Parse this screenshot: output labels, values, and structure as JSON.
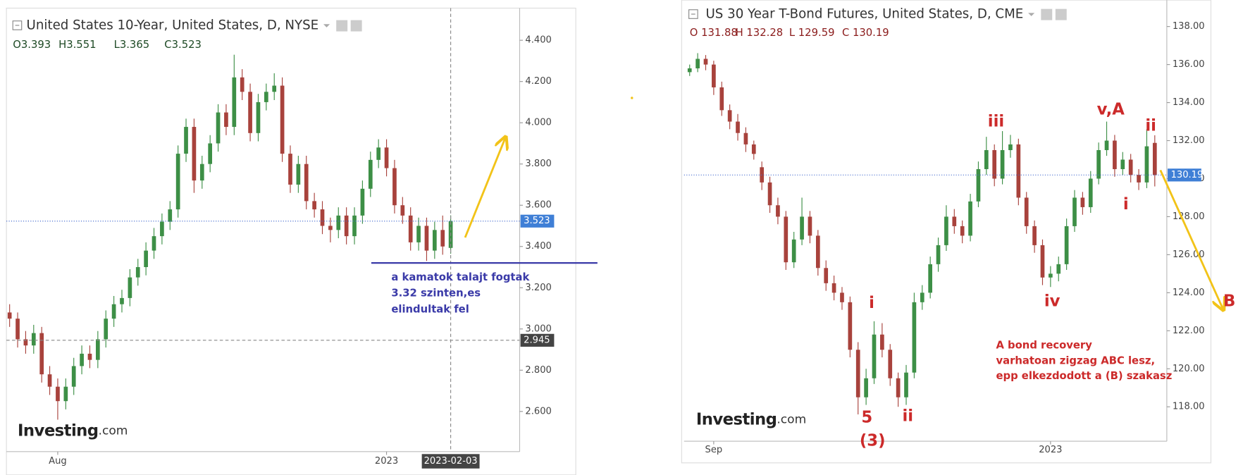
{
  "chart_data": [
    {
      "type": "candlestick",
      "title": "United States 10-Year, United States, D, NYSE",
      "info": [
        "O3.393",
        "H3.551",
        "L3.365",
        "C3.523"
      ],
      "up_color": "#3d8f46",
      "down_color": "#a8423c",
      "categories": [
        null,
        null,
        null,
        null,
        null,
        null,
        "Aug",
        null,
        null,
        null,
        null,
        null,
        null,
        null,
        null,
        null,
        null,
        null,
        null,
        null,
        null,
        null,
        null,
        null,
        null,
        null,
        null,
        null,
        null,
        null,
        null,
        null,
        null,
        null,
        null,
        null,
        null,
        null,
        null,
        null,
        null,
        null,
        null,
        null,
        null,
        null,
        null,
        "2023",
        null,
        null,
        null,
        null,
        null,
        null,
        null,
        null
      ],
      "ohlc": [
        [
          3.08,
          3.12,
          3.01,
          3.05
        ],
        [
          3.05,
          3.08,
          2.91,
          2.95
        ],
        [
          2.95,
          2.99,
          2.88,
          2.92
        ],
        [
          2.92,
          3.02,
          2.88,
          2.98
        ],
        [
          2.98,
          3.01,
          2.74,
          2.78
        ],
        [
          2.78,
          2.82,
          2.68,
          2.72
        ],
        [
          2.72,
          2.76,
          2.56,
          2.65
        ],
        [
          2.65,
          2.76,
          2.61,
          2.72
        ],
        [
          2.72,
          2.86,
          2.68,
          2.82
        ],
        [
          2.82,
          2.92,
          2.78,
          2.88
        ],
        [
          2.88,
          2.92,
          2.81,
          2.85
        ],
        [
          2.85,
          2.99,
          2.81,
          2.95
        ],
        [
          2.95,
          3.09,
          2.91,
          3.05
        ],
        [
          3.05,
          3.16,
          3.01,
          3.12
        ],
        [
          3.12,
          3.19,
          3.08,
          3.15
        ],
        [
          3.15,
          3.29,
          3.11,
          3.25
        ],
        [
          3.25,
          3.34,
          3.21,
          3.3
        ],
        [
          3.3,
          3.42,
          3.26,
          3.38
        ],
        [
          3.38,
          3.49,
          3.34,
          3.45
        ],
        [
          3.45,
          3.56,
          3.41,
          3.52
        ],
        [
          3.52,
          3.62,
          3.48,
          3.58
        ],
        [
          3.58,
          3.89,
          3.54,
          3.85
        ],
        [
          3.85,
          4.02,
          3.81,
          3.98
        ],
        [
          3.98,
          4.02,
          3.66,
          3.72
        ],
        [
          3.72,
          3.84,
          3.68,
          3.8
        ],
        [
          3.8,
          3.94,
          3.76,
          3.9
        ],
        [
          3.9,
          4.09,
          3.86,
          4.05
        ],
        [
          4.05,
          4.09,
          3.94,
          3.98
        ],
        [
          3.98,
          4.33,
          3.94,
          4.22
        ],
        [
          4.22,
          4.26,
          4.11,
          4.15
        ],
        [
          4.15,
          4.19,
          3.91,
          3.95
        ],
        [
          3.95,
          4.14,
          3.91,
          4.1
        ],
        [
          4.1,
          4.19,
          4.06,
          4.15
        ],
        [
          4.15,
          4.24,
          4.11,
          4.18
        ],
        [
          4.18,
          4.22,
          3.81,
          3.85
        ],
        [
          3.85,
          3.89,
          3.66,
          3.7
        ],
        [
          3.7,
          3.84,
          3.66,
          3.8
        ],
        [
          3.8,
          3.84,
          3.58,
          3.62
        ],
        [
          3.62,
          3.66,
          3.54,
          3.58
        ],
        [
          3.58,
          3.62,
          3.46,
          3.5
        ],
        [
          3.5,
          3.54,
          3.42,
          3.48
        ],
        [
          3.48,
          3.59,
          3.44,
          3.55
        ],
        [
          3.55,
          3.59,
          3.41,
          3.45
        ],
        [
          3.45,
          3.59,
          3.41,
          3.55
        ],
        [
          3.55,
          3.72,
          3.51,
          3.68
        ],
        [
          3.68,
          3.86,
          3.64,
          3.82
        ],
        [
          3.82,
          3.92,
          3.78,
          3.88
        ],
        [
          3.88,
          3.92,
          3.74,
          3.78
        ],
        [
          3.78,
          3.82,
          3.56,
          3.6
        ],
        [
          3.6,
          3.64,
          3.51,
          3.55
        ],
        [
          3.55,
          3.59,
          3.38,
          3.42
        ],
        [
          3.42,
          3.54,
          3.38,
          3.5
        ],
        [
          3.5,
          3.54,
          3.33,
          3.38
        ],
        [
          3.38,
          3.52,
          3.34,
          3.48
        ],
        [
          3.48,
          3.55,
          3.36,
          3.4
        ],
        [
          3.393,
          3.551,
          3.365,
          3.523
        ]
      ],
      "ylim": [
        2.405,
        4.556
      ],
      "yticks": [
        {
          "value": 2.6,
          "label": "2.600"
        },
        {
          "value": 2.8,
          "label": "2.800"
        },
        {
          "value": 3.0,
          "label": "3.000"
        },
        {
          "value": 3.2,
          "label": "3.200"
        },
        {
          "value": 3.4,
          "label": "3.400"
        },
        {
          "value": 3.6,
          "label": "3.600"
        },
        {
          "value": 3.8,
          "label": "3.800"
        },
        {
          "value": 4.0,
          "label": "4.000"
        },
        {
          "value": 4.2,
          "label": "4.200"
        },
        {
          "value": 4.4,
          "label": "4.400"
        }
      ],
      "last_price": 3.523,
      "crosshair_y": 2.945,
      "crosshair_x_label": "2023-02-03",
      "support_line": 3.32,
      "annotation": [
        "a kamatok talajt fogtak",
        "3.32 szinten,es",
        "elindultak fel"
      ],
      "annotation_color": "#3a3aa8",
      "watermark": [
        "Investing",
        ".com"
      ]
    },
    {
      "type": "candlestick",
      "title": "US 30 Year T-Bond Futures, United States, D, CME",
      "info": [
        "O 131.88",
        "H 132.28",
        "L 129.59",
        "C 130.19"
      ],
      "up_color": "#3d8f46",
      "down_color": "#a8423c",
      "categories": [
        null,
        null,
        null,
        "Sep",
        null,
        null,
        null,
        null,
        null,
        null,
        null,
        null,
        null,
        null,
        null,
        null,
        null,
        null,
        null,
        null,
        null,
        null,
        null,
        null,
        null,
        null,
        null,
        null,
        null,
        null,
        null,
        null,
        null,
        null,
        null,
        null,
        null,
        null,
        null,
        null,
        null,
        null,
        null,
        null,
        null,
        "2023",
        null,
        null,
        null,
        null,
        null,
        null,
        null,
        null,
        null,
        null,
        null,
        null,
        null
      ],
      "ohlc": [
        [
          135.6,
          136.0,
          135.4,
          135.8
        ],
        [
          135.8,
          136.6,
          135.6,
          136.3
        ],
        [
          136.3,
          136.5,
          135.7,
          136.0
        ],
        [
          136.0,
          136.2,
          134.4,
          134.8
        ],
        [
          134.8,
          135.1,
          133.3,
          133.6
        ],
        [
          133.6,
          133.9,
          132.6,
          133.0
        ],
        [
          133.0,
          133.4,
          132.0,
          132.4
        ],
        [
          132.4,
          132.7,
          131.4,
          131.8
        ],
        [
          131.8,
          132.0,
          131.0,
          131.3
        ],
        [
          130.6,
          130.9,
          129.4,
          129.8
        ],
        [
          129.8,
          130.1,
          128.2,
          128.6
        ],
        [
          128.6,
          129.0,
          127.6,
          128.0
        ],
        [
          128.0,
          128.3,
          125.2,
          125.6
        ],
        [
          125.6,
          127.2,
          125.3,
          126.8
        ],
        [
          126.8,
          129.0,
          126.5,
          128.0
        ],
        [
          128.0,
          128.3,
          126.6,
          127.0
        ],
        [
          127.0,
          127.3,
          124.9,
          125.3
        ],
        [
          125.3,
          125.7,
          124.1,
          124.5
        ],
        [
          124.5,
          124.9,
          123.6,
          124.0
        ],
        [
          124.0,
          124.3,
          123.1,
          123.5
        ],
        [
          123.5,
          123.8,
          120.6,
          121.0
        ],
        [
          121.0,
          121.4,
          117.6,
          118.5
        ],
        [
          118.5,
          120.0,
          118.1,
          119.5
        ],
        [
          119.5,
          122.5,
          119.2,
          121.8
        ],
        [
          121.8,
          122.4,
          120.6,
          121.0
        ],
        [
          121.0,
          121.3,
          119.1,
          119.5
        ],
        [
          119.5,
          119.8,
          118.0,
          118.5
        ],
        [
          118.5,
          120.2,
          118.1,
          119.8
        ],
        [
          119.8,
          124.0,
          119.5,
          123.5
        ],
        [
          123.5,
          124.4,
          123.1,
          124.0
        ],
        [
          124.0,
          125.9,
          123.7,
          125.5
        ],
        [
          125.5,
          126.9,
          125.1,
          126.5
        ],
        [
          126.5,
          128.6,
          126.2,
          128.0
        ],
        [
          128.0,
          128.4,
          127.1,
          127.5
        ],
        [
          127.5,
          127.8,
          126.6,
          127.0
        ],
        [
          127.0,
          129.2,
          126.7,
          128.8
        ],
        [
          128.8,
          130.9,
          128.5,
          130.5
        ],
        [
          130.5,
          132.2,
          130.2,
          131.5
        ],
        [
          131.5,
          131.8,
          129.6,
          130.0
        ],
        [
          130.0,
          132.5,
          129.7,
          131.5
        ],
        [
          131.5,
          132.3,
          131.1,
          131.8
        ],
        [
          131.8,
          132.1,
          128.6,
          129.0
        ],
        [
          129.0,
          129.3,
          127.1,
          127.5
        ],
        [
          127.5,
          127.8,
          126.1,
          126.5
        ],
        [
          126.5,
          126.8,
          124.4,
          124.8
        ],
        [
          124.8,
          125.4,
          124.3,
          125.0
        ],
        [
          125.0,
          125.9,
          124.6,
          125.5
        ],
        [
          125.5,
          127.9,
          125.2,
          127.5
        ],
        [
          127.5,
          129.4,
          127.2,
          129.0
        ],
        [
          129.0,
          129.3,
          128.1,
          128.5
        ],
        [
          128.5,
          130.4,
          128.2,
          130.0
        ],
        [
          130.0,
          131.9,
          129.7,
          131.5
        ],
        [
          131.5,
          133.0,
          131.2,
          132.0
        ],
        [
          132.0,
          132.3,
          130.1,
          130.5
        ],
        [
          130.5,
          131.4,
          130.2,
          131.0
        ],
        [
          131.0,
          131.3,
          129.8,
          130.2
        ],
        [
          130.2,
          130.5,
          129.4,
          129.8
        ],
        [
          129.8,
          132.6,
          129.5,
          131.7
        ],
        [
          131.88,
          132.28,
          129.59,
          130.19
        ]
      ],
      "ylim": [
        116.19,
        139.39
      ],
      "yticks": [
        {
          "value": 118,
          "label": "118.00"
        },
        {
          "value": 120,
          "label": "120.00"
        },
        {
          "value": 122,
          "label": "122.00"
        },
        {
          "value": 124,
          "label": "124.00"
        },
        {
          "value": 126,
          "label": "126.00"
        },
        {
          "value": 128,
          "label": "128.00"
        },
        {
          "value": 130,
          "label": "130.00"
        },
        {
          "value": 132,
          "label": "132.00"
        },
        {
          "value": 134,
          "label": "134.00"
        },
        {
          "value": 136,
          "label": "136.00"
        },
        {
          "value": 138,
          "label": "138.00"
        }
      ],
      "last_price": 130.19,
      "wave_labels": [
        "i",
        "5",
        "(3)",
        "ii",
        "iii",
        "iv",
        "v,A",
        "ii",
        "i",
        "B"
      ],
      "annotation": [
        "A bond recovery",
        "varhatoan zigzag ABC lesz,",
        "epp elkezdodott a (B) szakasz"
      ],
      "annotation_color": "#cc2a2a",
      "watermark": [
        "Investing",
        ".com"
      ]
    }
  ]
}
